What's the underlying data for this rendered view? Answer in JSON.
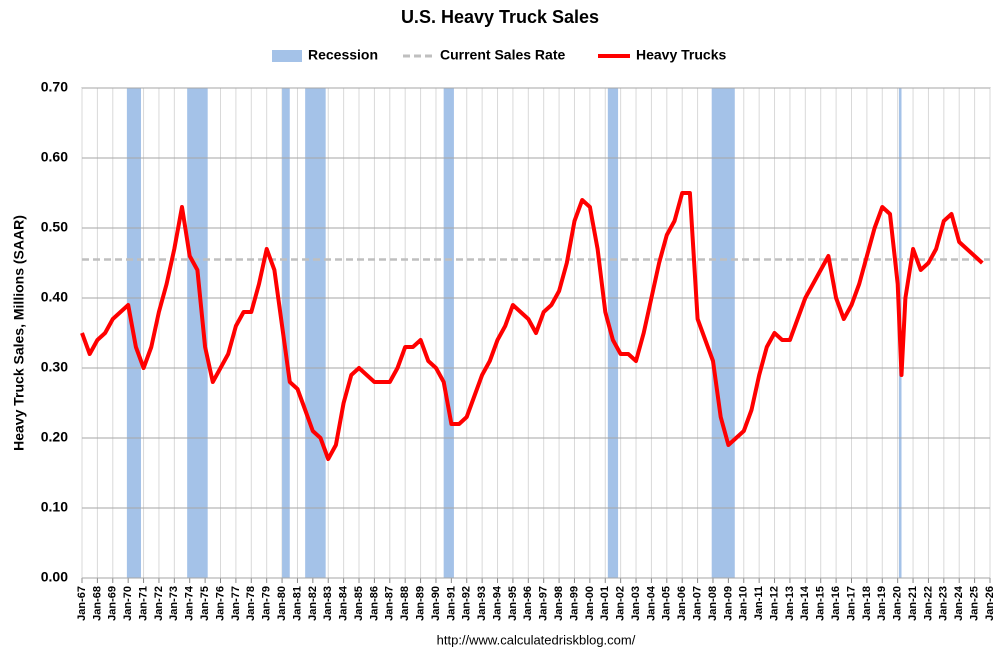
{
  "chart_data": {
    "type": "line",
    "title": "U.S. Heavy Truck Sales",
    "y_label": "Heavy Truck Sales, Millions (SAAR)",
    "source": "http://www.calculatedriskblog.com/",
    "grid": true,
    "xlim": [
      "1967-01",
      "2026-01"
    ],
    "ylim": [
      0,
      0.7
    ],
    "yticks": [
      {
        "value": 0,
        "label": "0.00"
      },
      {
        "value": 0.1,
        "label": "0.10"
      },
      {
        "value": 0.2,
        "label": "0.20"
      },
      {
        "value": 0.3,
        "label": "0.30"
      },
      {
        "value": 0.4,
        "label": "0.40"
      },
      {
        "value": 0.5,
        "label": "0.50"
      },
      {
        "value": 0.6,
        "label": "0.60"
      },
      {
        "value": 0.7,
        "label": "0.70"
      }
    ],
    "xticks": [
      {
        "value": "1967-01",
        "label": "Jan-67"
      },
      {
        "value": "1968-01",
        "label": "Jan-68"
      },
      {
        "value": "1969-01",
        "label": "Jan-69"
      },
      {
        "value": "1970-01",
        "label": "Jan-70"
      },
      {
        "value": "1971-01",
        "label": "Jan-71"
      },
      {
        "value": "1972-01",
        "label": "Jan-72"
      },
      {
        "value": "1973-01",
        "label": "Jan-73"
      },
      {
        "value": "1974-01",
        "label": "Jan-74"
      },
      {
        "value": "1975-01",
        "label": "Jan-75"
      },
      {
        "value": "1976-01",
        "label": "Jan-76"
      },
      {
        "value": "1977-01",
        "label": "Jan-77"
      },
      {
        "value": "1978-01",
        "label": "Jan-78"
      },
      {
        "value": "1979-01",
        "label": "Jan-79"
      },
      {
        "value": "1980-01",
        "label": "Jan-80"
      },
      {
        "value": "1981-01",
        "label": "Jan-81"
      },
      {
        "value": "1982-01",
        "label": "Jan-82"
      },
      {
        "value": "1983-01",
        "label": "Jan-83"
      },
      {
        "value": "1984-01",
        "label": "Jan-84"
      },
      {
        "value": "1985-01",
        "label": "Jan-85"
      },
      {
        "value": "1986-01",
        "label": "Jan-86"
      },
      {
        "value": "1987-01",
        "label": "Jan-87"
      },
      {
        "value": "1988-01",
        "label": "Jan-88"
      },
      {
        "value": "1989-01",
        "label": "Jan-89"
      },
      {
        "value": "1990-01",
        "label": "Jan-90"
      },
      {
        "value": "1991-01",
        "label": "Jan-91"
      },
      {
        "value": "1992-01",
        "label": "Jan-92"
      },
      {
        "value": "1993-01",
        "label": "Jan-93"
      },
      {
        "value": "1994-01",
        "label": "Jan-94"
      },
      {
        "value": "1995-01",
        "label": "Jan-95"
      },
      {
        "value": "1996-01",
        "label": "Jan-96"
      },
      {
        "value": "1997-01",
        "label": "Jan-97"
      },
      {
        "value": "1998-01",
        "label": "Jan-98"
      },
      {
        "value": "1999-01",
        "label": "Jan-99"
      },
      {
        "value": "2000-01",
        "label": "Jan-00"
      },
      {
        "value": "2001-01",
        "label": "Jan-01"
      },
      {
        "value": "2002-01",
        "label": "Jan-02"
      },
      {
        "value": "2003-01",
        "label": "Jan-03"
      },
      {
        "value": "2004-01",
        "label": "Jan-04"
      },
      {
        "value": "2005-01",
        "label": "Jan-05"
      },
      {
        "value": "2006-01",
        "label": "Jan-06"
      },
      {
        "value": "2007-01",
        "label": "Jan-07"
      },
      {
        "value": "2008-01",
        "label": "Jan-08"
      },
      {
        "value": "2009-01",
        "label": "Jan-09"
      },
      {
        "value": "2010-01",
        "label": "Jan-10"
      },
      {
        "value": "2011-01",
        "label": "Jan-11"
      },
      {
        "value": "2012-01",
        "label": "Jan-12"
      },
      {
        "value": "2013-01",
        "label": "Jan-13"
      },
      {
        "value": "2014-01",
        "label": "Jan-14"
      },
      {
        "value": "2015-01",
        "label": "Jan-15"
      },
      {
        "value": "2016-01",
        "label": "Jan-16"
      },
      {
        "value": "2017-01",
        "label": "Jan-17"
      },
      {
        "value": "2018-01",
        "label": "Jan-18"
      },
      {
        "value": "2019-01",
        "label": "Jan-19"
      },
      {
        "value": "2020-01",
        "label": "Jan-20"
      },
      {
        "value": "2021-01",
        "label": "Jan-21"
      },
      {
        "value": "2022-01",
        "label": "Jan-22"
      },
      {
        "value": "2023-01",
        "label": "Jan-23"
      },
      {
        "value": "2024-01",
        "label": "Jan-24"
      },
      {
        "value": "2025-01",
        "label": "Jan-25"
      },
      {
        "value": "2026-01",
        "label": "Jan-26"
      }
    ],
    "bands": {
      "name": "Recession",
      "color": "#a4c2e8",
      "ranges": [
        {
          "start": "1969-12",
          "end": "1970-11"
        },
        {
          "start": "1973-11",
          "end": "1975-03"
        },
        {
          "start": "1980-01",
          "end": "1980-07"
        },
        {
          "start": "1981-07",
          "end": "1982-11"
        },
        {
          "start": "1990-07",
          "end": "1991-03"
        },
        {
          "start": "2001-03",
          "end": "2001-11"
        },
        {
          "start": "2007-12",
          "end": "2009-06"
        },
        {
          "start": "2020-02",
          "end": "2020-04"
        }
      ]
    },
    "reference_line": {
      "name": "Current Sales Rate",
      "value": 0.455,
      "color": "#bfbfbf"
    },
    "x": [
      "1967-01",
      "1967-07",
      "1968-01",
      "1968-07",
      "1969-01",
      "1969-07",
      "1970-01",
      "1970-07",
      "1971-01",
      "1971-07",
      "1972-01",
      "1972-07",
      "1973-01",
      "1973-07",
      "1974-01",
      "1974-07",
      "1975-01",
      "1975-07",
      "1976-01",
      "1976-07",
      "1977-01",
      "1977-07",
      "1978-01",
      "1978-07",
      "1979-01",
      "1979-07",
      "1980-01",
      "1980-07",
      "1981-01",
      "1981-07",
      "1982-01",
      "1982-07",
      "1983-01",
      "1983-07",
      "1984-01",
      "1984-07",
      "1985-01",
      "1985-07",
      "1986-01",
      "1986-07",
      "1987-01",
      "1987-07",
      "1988-01",
      "1988-07",
      "1989-01",
      "1989-07",
      "1990-01",
      "1990-07",
      "1991-01",
      "1991-07",
      "1992-01",
      "1992-07",
      "1993-01",
      "1993-07",
      "1994-01",
      "1994-07",
      "1995-01",
      "1995-07",
      "1996-01",
      "1996-07",
      "1997-01",
      "1997-07",
      "1998-01",
      "1998-07",
      "1999-01",
      "1999-07",
      "2000-01",
      "2000-07",
      "2001-01",
      "2001-07",
      "2002-01",
      "2002-07",
      "2003-01",
      "2003-07",
      "2004-01",
      "2004-07",
      "2005-01",
      "2005-07",
      "2006-01",
      "2006-07",
      "2007-01",
      "2007-07",
      "2008-01",
      "2008-07",
      "2009-01",
      "2009-07",
      "2010-01",
      "2010-07",
      "2011-01",
      "2011-07",
      "2012-01",
      "2012-07",
      "2013-01",
      "2013-07",
      "2014-01",
      "2014-07",
      "2015-01",
      "2015-07",
      "2016-01",
      "2016-07",
      "2017-01",
      "2017-07",
      "2018-01",
      "2018-07",
      "2019-01",
      "2019-07",
      "2020-01",
      "2020-04",
      "2020-07",
      "2021-01",
      "2021-07",
      "2022-01",
      "2022-07",
      "2023-01",
      "2023-07",
      "2024-01",
      "2024-07",
      "2025-01",
      "2025-07"
    ],
    "series": [
      {
        "name": "Heavy Trucks",
        "color": "#ff0000",
        "values": [
          0.35,
          0.32,
          0.34,
          0.35,
          0.37,
          0.38,
          0.39,
          0.33,
          0.3,
          0.33,
          0.38,
          0.42,
          0.47,
          0.53,
          0.46,
          0.44,
          0.33,
          0.28,
          0.3,
          0.32,
          0.36,
          0.38,
          0.38,
          0.42,
          0.47,
          0.44,
          0.36,
          0.28,
          0.27,
          0.24,
          0.21,
          0.2,
          0.17,
          0.19,
          0.25,
          0.29,
          0.3,
          0.29,
          0.28,
          0.28,
          0.28,
          0.3,
          0.33,
          0.33,
          0.34,
          0.31,
          0.3,
          0.28,
          0.22,
          0.22,
          0.23,
          0.26,
          0.29,
          0.31,
          0.34,
          0.36,
          0.39,
          0.38,
          0.37,
          0.35,
          0.38,
          0.39,
          0.41,
          0.45,
          0.51,
          0.54,
          0.53,
          0.47,
          0.38,
          0.34,
          0.32,
          0.32,
          0.31,
          0.35,
          0.4,
          0.45,
          0.49,
          0.51,
          0.55,
          0.55,
          0.37,
          0.34,
          0.31,
          0.23,
          0.19,
          0.2,
          0.21,
          0.24,
          0.29,
          0.33,
          0.35,
          0.34,
          0.34,
          0.37,
          0.4,
          0.42,
          0.44,
          0.46,
          0.4,
          0.37,
          0.39,
          0.42,
          0.46,
          0.5,
          0.53,
          0.52,
          0.42,
          0.29,
          0.4,
          0.47,
          0.44,
          0.45,
          0.47,
          0.51,
          0.52,
          0.48,
          0.47,
          0.46,
          0.45
        ]
      }
    ]
  }
}
